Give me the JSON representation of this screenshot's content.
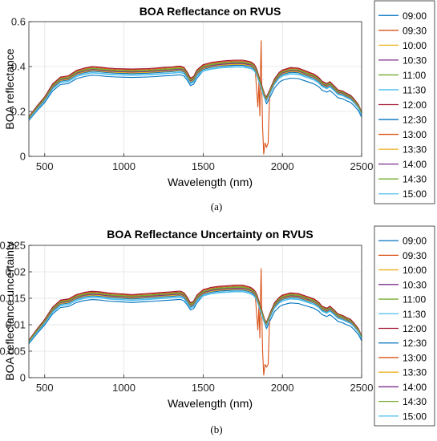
{
  "figure": {
    "caption_a": "(a)",
    "caption_b": "(b)"
  },
  "legend": {
    "entries": [
      "09:00",
      "09:30",
      "10:00",
      "10:30",
      "11:00",
      "11:30",
      "12:00",
      "12:30",
      "13:00",
      "13:30",
      "14:00",
      "14:30",
      "15:00"
    ],
    "colors": [
      "#0072BD",
      "#D95319",
      "#EDB120",
      "#7E2F8E",
      "#77AC30",
      "#4DBEEE",
      "#A2142F",
      "#0072BD",
      "#D95319",
      "#EDB120",
      "#7E2F8E",
      "#77AC30",
      "#4DBEEE"
    ]
  },
  "chart_data": [
    {
      "type": "line",
      "title": "BOA Reflectance on RVUS",
      "xlabel": "Wavelength (nm)",
      "ylabel": "BOA reflectance",
      "xlim": [
        400,
        2500
      ],
      "ylim": [
        0,
        0.6
      ],
      "xticks": [
        500,
        1000,
        1500,
        2000,
        2500
      ],
      "yticks": [
        0,
        0.2,
        0.4,
        0.6
      ],
      "ytick_labels": [
        "0",
        "0.2",
        "0.4",
        "0.6"
      ],
      "grid": true,
      "legend_position": "outside-right",
      "base_spectrum": {
        "x": [
          400,
          450,
          500,
          550,
          600,
          650,
          700,
          750,
          800,
          850,
          900,
          950,
          1000,
          1050,
          1100,
          1150,
          1200,
          1250,
          1300,
          1340,
          1360,
          1380,
          1400,
          1420,
          1440,
          1460,
          1500,
          1550,
          1600,
          1650,
          1700,
          1750,
          1780,
          1800,
          1820,
          1830,
          1840,
          1850,
          1860,
          1870,
          1880,
          1890,
          1900,
          1920,
          1950,
          1980,
          2000,
          2050,
          2100,
          2150,
          2200,
          2230,
          2250,
          2280,
          2300,
          2330,
          2350,
          2380,
          2400,
          2430,
          2450,
          2480,
          2500
        ],
        "y": [
          0.17,
          0.215,
          0.255,
          0.31,
          0.34,
          0.345,
          0.368,
          0.378,
          0.385,
          0.382,
          0.378,
          0.376,
          0.375,
          0.374,
          0.375,
          0.376,
          0.378,
          0.381,
          0.383,
          0.386,
          0.386,
          0.38,
          0.36,
          0.335,
          0.342,
          0.37,
          0.393,
          0.402,
          0.407,
          0.41,
          0.412,
          0.412,
          0.408,
          0.405,
          0.396,
          0.386,
          0.37,
          0.348,
          0.326,
          0.305,
          0.282,
          0.262,
          0.255,
          0.285,
          0.332,
          0.36,
          0.37,
          0.38,
          0.378,
          0.365,
          0.352,
          0.338,
          0.322,
          0.312,
          0.32,
          0.3,
          0.285,
          0.28,
          0.272,
          0.262,
          0.248,
          0.222,
          0.19
        ]
      },
      "series_scale": [
        0.94,
        1.03,
        0.99,
        1.0,
        1.02,
        0.97,
        1.04,
        0.985,
        1.01,
        0.995,
        1.005,
        1.015,
        0.965
      ],
      "series_1500_factor": 0.975,
      "spike_series": {
        "name": "09:30",
        "x": [
          1830,
          1845,
          1852,
          1858,
          1862,
          1866,
          1870,
          1875,
          1882,
          1890,
          1900,
          1910,
          1920
        ],
        "y": [
          0.37,
          0.22,
          0.33,
          0.18,
          0.38,
          0.515,
          0.3,
          0.13,
          0.01,
          0.06,
          0.04,
          0.06,
          0.29
        ]
      },
      "series": [
        {
          "name": "09:00"
        },
        {
          "name": "09:30"
        },
        {
          "name": "10:00"
        },
        {
          "name": "10:30"
        },
        {
          "name": "11:00"
        },
        {
          "name": "11:30"
        },
        {
          "name": "12:00"
        },
        {
          "name": "12:30"
        },
        {
          "name": "13:00"
        },
        {
          "name": "13:30"
        },
        {
          "name": "14:00"
        },
        {
          "name": "14:30"
        },
        {
          "name": "15:00"
        }
      ]
    },
    {
      "type": "line",
      "title": "BOA Reflectance Uncertainty on RVUS",
      "xlabel": "Wavelength (nm)",
      "ylabel": "BOA reflectance uncertainty",
      "xlim": [
        400,
        2500
      ],
      "ylim": [
        0,
        0.025
      ],
      "xticks": [
        500,
        1000,
        1500,
        2000,
        2500
      ],
      "yticks": [
        0,
        0.005,
        0.01,
        0.015,
        0.02,
        0.025
      ],
      "ytick_labels": [
        "0",
        "0.005",
        "0.01",
        "0.015",
        "0.02",
        "0.025"
      ],
      "grid": true,
      "legend_position": "outside-right",
      "base_spectrum": {
        "x": [
          400,
          450,
          500,
          550,
          600,
          650,
          700,
          750,
          800,
          850,
          900,
          950,
          1000,
          1050,
          1100,
          1150,
          1200,
          1250,
          1300,
          1340,
          1360,
          1380,
          1400,
          1420,
          1440,
          1460,
          1500,
          1550,
          1600,
          1650,
          1700,
          1750,
          1780,
          1800,
          1820,
          1830,
          1840,
          1850,
          1860,
          1870,
          1880,
          1890,
          1900,
          1920,
          1950,
          1980,
          2000,
          2050,
          2100,
          2150,
          2200,
          2230,
          2250,
          2280,
          2300,
          2330,
          2350,
          2380,
          2400,
          2430,
          2450,
          2480,
          2500
        ],
        "y": [
          0.0068,
          0.0088,
          0.0106,
          0.0128,
          0.0141,
          0.0143,
          0.0151,
          0.0155,
          0.0157,
          0.0156,
          0.0154,
          0.0153,
          0.0152,
          0.0151,
          0.0152,
          0.0153,
          0.0154,
          0.0155,
          0.0156,
          0.0157,
          0.0157,
          0.0154,
          0.0146,
          0.0136,
          0.0139,
          0.015,
          0.016,
          0.0164,
          0.0166,
          0.0167,
          0.0168,
          0.0168,
          0.0166,
          0.0164,
          0.016,
          0.0156,
          0.015,
          0.0141,
          0.0132,
          0.0123,
          0.0113,
          0.0104,
          0.0101,
          0.0116,
          0.0136,
          0.0146,
          0.015,
          0.0154,
          0.0153,
          0.0148,
          0.0143,
          0.0137,
          0.013,
          0.0126,
          0.013,
          0.0122,
          0.0116,
          0.0113,
          0.011,
          0.0106,
          0.01,
          0.0089,
          0.0076
        ]
      },
      "series_scale": [
        0.94,
        1.03,
        0.99,
        1.0,
        1.02,
        0.97,
        1.04,
        0.985,
        1.01,
        0.995,
        1.005,
        1.015,
        0.965
      ],
      "series_1500_factor": 0.975,
      "spike_series": {
        "name": "09:30",
        "x": [
          1830,
          1845,
          1852,
          1858,
          1862,
          1866,
          1870,
          1875,
          1882,
          1890,
          1900,
          1910,
          1920
        ],
        "y": [
          0.015,
          0.009,
          0.0135,
          0.0075,
          0.0155,
          0.0206,
          0.012,
          0.005,
          0.0005,
          0.0025,
          0.002,
          0.0025,
          0.0118
        ]
      },
      "series": [
        {
          "name": "09:00"
        },
        {
          "name": "09:30"
        },
        {
          "name": "10:00"
        },
        {
          "name": "10:30"
        },
        {
          "name": "11:00"
        },
        {
          "name": "11:30"
        },
        {
          "name": "12:00"
        },
        {
          "name": "12:30"
        },
        {
          "name": "13:00"
        },
        {
          "name": "13:30"
        },
        {
          "name": "14:00"
        },
        {
          "name": "14:30"
        },
        {
          "name": "15:00"
        }
      ]
    }
  ]
}
